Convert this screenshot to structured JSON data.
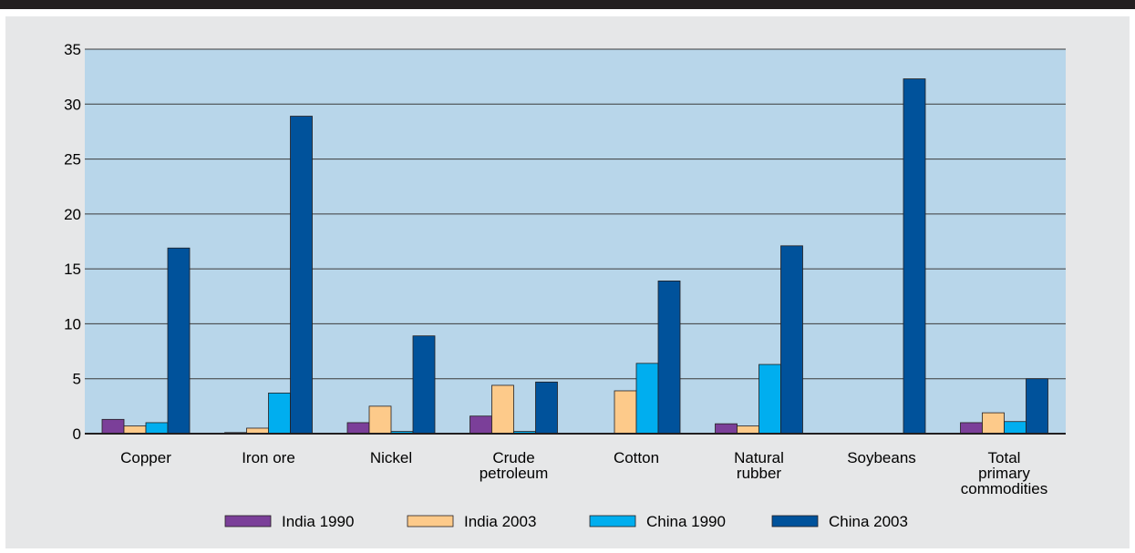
{
  "chart_data": {
    "type": "bar",
    "categories": [
      [
        "Copper"
      ],
      [
        "Iron ore"
      ],
      [
        "Nickel"
      ],
      [
        "Crude",
        "petroleum"
      ],
      [
        "Cotton"
      ],
      [
        "Natural",
        "rubber"
      ],
      [
        "Soybeans"
      ],
      [
        "Total",
        "primary",
        "commodities"
      ]
    ],
    "series": [
      {
        "name": "India 1990",
        "color": "#7b3f99",
        "values": [
          1.3,
          0.1,
          1.0,
          1.6,
          0.0,
          0.9,
          0.0,
          1.0
        ]
      },
      {
        "name": "India 2003",
        "color": "#fdca8a",
        "values": [
          0.7,
          0.5,
          2.5,
          4.4,
          3.9,
          0.7,
          0.0,
          1.9
        ]
      },
      {
        "name": "China 1990",
        "color": "#00aeef",
        "values": [
          1.0,
          3.7,
          0.2,
          0.2,
          6.4,
          6.3,
          0.0,
          1.1
        ]
      },
      {
        "name": "China 2003",
        "color": "#00529b",
        "values": [
          16.9,
          28.9,
          8.9,
          4.7,
          13.9,
          17.1,
          32.3,
          5.0
        ]
      }
    ],
    "ylim": [
      0,
      35
    ],
    "yticks": [
      0,
      5,
      10,
      15,
      20,
      25,
      30,
      35
    ],
    "plot_background": "#b8d6ea",
    "grid": true,
    "legend_position": "bottom"
  }
}
